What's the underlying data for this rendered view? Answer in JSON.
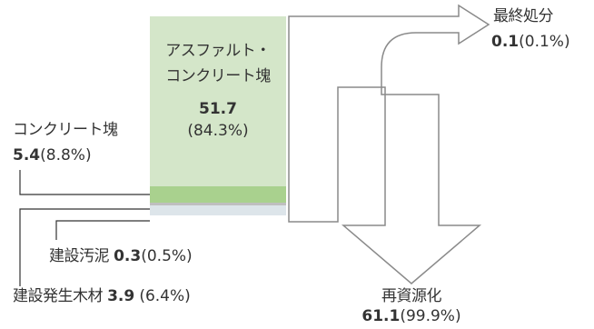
{
  "diagram": {
    "main_block": {
      "label_line1": "アスファルト・",
      "label_line2": "コンクリート塊",
      "value": "51.7",
      "percent": "(84.3%)"
    },
    "concrete_block": {
      "label": "コンクリート塊",
      "value": "5.4",
      "percent": "(8.8%)"
    },
    "sludge": {
      "label": "建設汚泥",
      "value": "0.3",
      "percent": "(0.5%)"
    },
    "wood": {
      "label": "建設発生木材",
      "value": "3.9",
      "percent": "(6.4%)"
    },
    "final_disposal": {
      "label": "最終処分",
      "value": "0.1",
      "percent": "(0.1%)"
    },
    "recycling": {
      "label": "再資源化",
      "value": "61.1",
      "percent": "(99.9%)"
    },
    "colors": {
      "main_fill": "#d4e6c9",
      "concrete_fill": "#a9d18e",
      "sludge_fill": "#bfbfbf",
      "wood_fill": "#dde5ea",
      "arrow_stroke": "#8a8a8a",
      "line": "#333333"
    }
  }
}
